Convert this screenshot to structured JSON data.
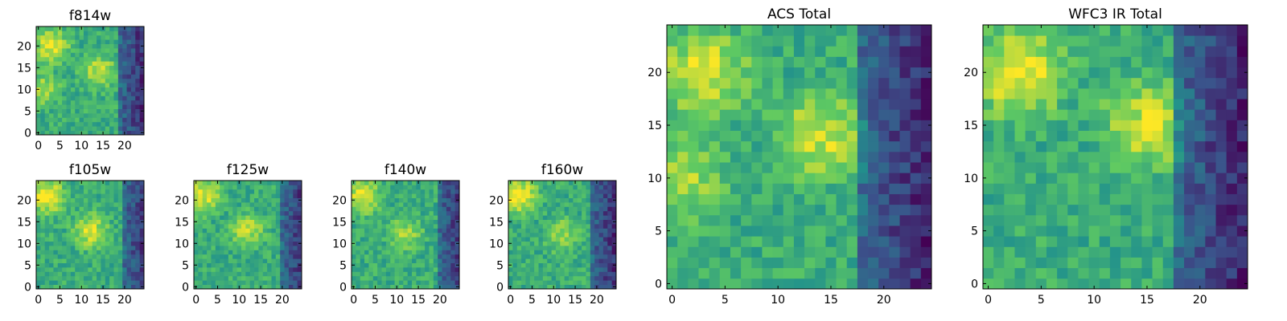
{
  "figure": {
    "colormap": "viridis",
    "colormap_stops": [
      "#440154",
      "#3b528b",
      "#21918c",
      "#5ec962",
      "#fde725"
    ]
  },
  "chart_data": [
    {
      "type": "heatmap",
      "id": "f814w",
      "title": "f814w",
      "x_ticks": [
        "0",
        "5",
        "10",
        "15",
        "20"
      ],
      "y_ticks": [
        "0",
        "5",
        "10",
        "15",
        "20"
      ],
      "xlim": [
        0,
        24
      ],
      "ylim": [
        0,
        24
      ],
      "grid_size": [
        25,
        25
      ],
      "value_range": [
        0,
        1
      ],
      "hot_spots": [
        [
          3,
          20,
          0.95
        ],
        [
          14,
          14,
          0.9
        ],
        [
          1,
          10,
          0.85
        ]
      ],
      "dark_edge_from_x": 19
    },
    {
      "type": "heatmap",
      "id": "f105w",
      "title": "f105w",
      "x_ticks": [
        "0",
        "5",
        "10",
        "15",
        "20"
      ],
      "y_ticks": [
        "0",
        "5",
        "10",
        "15",
        "20"
      ],
      "xlim": [
        0,
        24
      ],
      "ylim": [
        0,
        24
      ],
      "grid_size": [
        25,
        25
      ],
      "value_range": [
        0,
        1
      ],
      "hot_spots": [
        [
          2,
          21,
          1.0
        ],
        [
          12,
          13,
          0.92
        ]
      ],
      "dark_edge_from_x": 20
    },
    {
      "type": "heatmap",
      "id": "f125w",
      "title": "f125w",
      "x_ticks": [
        "0",
        "5",
        "10",
        "15",
        "20"
      ],
      "y_ticks": [
        "0",
        "5",
        "10",
        "15",
        "20"
      ],
      "xlim": [
        0,
        24
      ],
      "ylim": [
        0,
        24
      ],
      "grid_size": [
        25,
        25
      ],
      "value_range": [
        0,
        1
      ],
      "hot_spots": [
        [
          2,
          21,
          0.95
        ],
        [
          12,
          13,
          0.88
        ]
      ],
      "dark_edge_from_x": 20
    },
    {
      "type": "heatmap",
      "id": "f140w",
      "title": "f140w",
      "x_ticks": [
        "0",
        "5",
        "10",
        "15",
        "20"
      ],
      "y_ticks": [
        "0",
        "5",
        "10",
        "15",
        "20"
      ],
      "xlim": [
        0,
        24
      ],
      "ylim": [
        0,
        24
      ],
      "grid_size": [
        25,
        25
      ],
      "value_range": [
        0,
        1
      ],
      "hot_spots": [
        [
          2,
          21,
          0.95
        ],
        [
          12,
          12,
          0.85
        ]
      ],
      "dark_edge_from_x": 20
    },
    {
      "type": "heatmap",
      "id": "f160w",
      "title": "f160w",
      "x_ticks": [
        "0",
        "5",
        "10",
        "15",
        "20"
      ],
      "y_ticks": [
        "0",
        "5",
        "10",
        "15",
        "20"
      ],
      "xlim": [
        0,
        24
      ],
      "ylim": [
        0,
        24
      ],
      "grid_size": [
        25,
        25
      ],
      "value_range": [
        0,
        1
      ],
      "hot_spots": [
        [
          2,
          21,
          1.0
        ],
        [
          12,
          12,
          0.85
        ]
      ],
      "dark_edge_from_x": 19
    },
    {
      "type": "heatmap",
      "id": "acs-total",
      "title": "ACS Total",
      "x_ticks": [
        "0",
        "5",
        "10",
        "15",
        "20"
      ],
      "y_ticks": [
        "0",
        "5",
        "10",
        "15",
        "20"
      ],
      "xlim": [
        0,
        24
      ],
      "ylim": [
        0,
        24
      ],
      "grid_size": [
        25,
        25
      ],
      "value_range": [
        0,
        1
      ],
      "hot_spots": [
        [
          3,
          20,
          0.95
        ],
        [
          14,
          14,
          0.92
        ],
        [
          1,
          10,
          0.85
        ]
      ],
      "dark_edge_from_x": 18
    },
    {
      "type": "heatmap",
      "id": "wfc3-ir-total",
      "title": "WFC3 IR Total",
      "x_ticks": [
        "0",
        "5",
        "10",
        "15",
        "20"
      ],
      "y_ticks": [
        "0",
        "5",
        "10",
        "15",
        "20"
      ],
      "xlim": [
        0,
        24
      ],
      "ylim": [
        0,
        24
      ],
      "grid_size": [
        25,
        25
      ],
      "value_range": [
        0,
        1
      ],
      "hot_spots": [
        [
          3,
          20,
          1.0
        ],
        [
          15,
          15,
          0.92
        ]
      ],
      "dark_edge_from_x": 18
    }
  ]
}
